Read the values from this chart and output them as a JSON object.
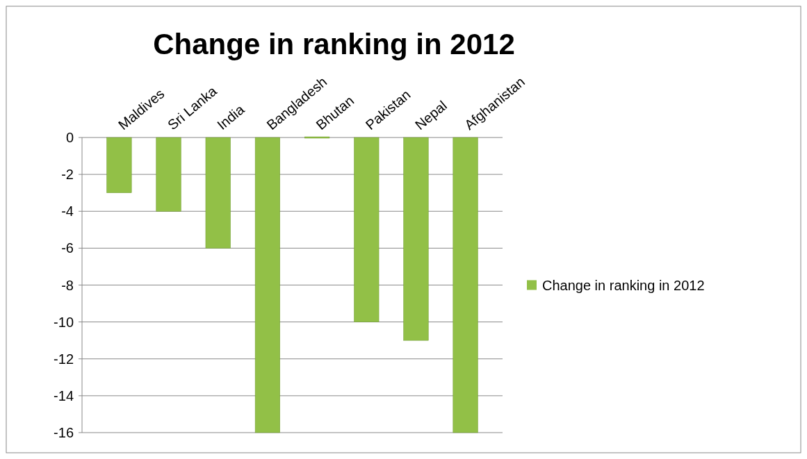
{
  "chart_data": {
    "type": "bar",
    "title": "Change in ranking in 2012",
    "categories": [
      "Maldives",
      "Sri Lanka",
      "India",
      "Bangladesh",
      "Bhutan",
      "Pakistan",
      "Nepal",
      "Afghanistan"
    ],
    "series": [
      {
        "name": "Change in ranking in 2012",
        "color": "#92c047",
        "values": [
          -3,
          -4,
          -6,
          -16,
          0,
          -10,
          -11,
          -16
        ]
      }
    ],
    "ylim": [
      -16,
      0
    ],
    "yticks": [
      -16,
      -14,
      -12,
      -10,
      -8,
      -6,
      -4,
      -2,
      0
    ],
    "grid": "y",
    "legend": "right"
  }
}
